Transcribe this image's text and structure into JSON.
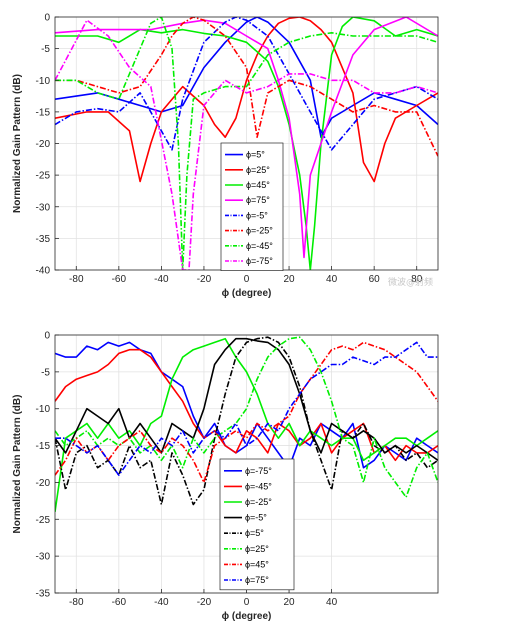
{
  "chart_data": [
    {
      "type": "line",
      "xlabel": "ϕ (degree)",
      "ylabel": "Normalized Gain Pattern (dB)",
      "xlim": [
        -90,
        90
      ],
      "ylim": [
        -40,
        0
      ],
      "xticks": [
        -80,
        -60,
        -40,
        -20,
        0,
        20,
        40,
        60,
        80
      ],
      "yticks": [
        0,
        -5,
        -10,
        -15,
        -20,
        -25,
        -30,
        -35,
        -40
      ],
      "grid": true,
      "legend_position": "center",
      "series": [
        {
          "name": "ϕ=5°",
          "color": "#0000ff",
          "dash": "solid",
          "x": [
            -90,
            -70,
            -60,
            -50,
            -40,
            -30,
            -20,
            -10,
            0,
            5,
            10,
            20,
            30,
            35,
            40,
            50,
            60,
            70,
            80,
            90
          ],
          "y": [
            -13,
            -12,
            -13,
            -14,
            -15,
            -14,
            -8,
            -4,
            -0.8,
            0,
            -0.8,
            -4,
            -10,
            -19,
            -16,
            -14,
            -12,
            -13,
            -14,
            -17
          ]
        },
        {
          "name": "ϕ=25°",
          "color": "#ff0000",
          "dash": "solid",
          "x": [
            -90,
            -75,
            -65,
            -55,
            -50,
            -45,
            -40,
            -30,
            -20,
            -15,
            -10,
            -5,
            0,
            5,
            10,
            15,
            20,
            25,
            30,
            35,
            40,
            50,
            55,
            60,
            65,
            70,
            80,
            90
          ],
          "y": [
            -16,
            -15,
            -15,
            -18,
            -26,
            -20,
            -15,
            -11,
            -14,
            -17,
            -19,
            -16,
            -10,
            -6,
            -3,
            -1,
            -0.2,
            0,
            -0.6,
            -2,
            -4,
            -12,
            -23,
            -26,
            -20,
            -16,
            -14,
            -12
          ]
        },
        {
          "name": "ϕ=45°",
          "color": "#00ee00",
          "dash": "solid",
          "x": [
            -90,
            -70,
            -60,
            -50,
            -40,
            -30,
            -20,
            -10,
            0,
            10,
            15,
            20,
            25,
            28,
            30,
            32,
            35,
            40,
            45,
            50,
            60,
            70,
            80,
            90
          ],
          "y": [
            -3,
            -3,
            -4,
            -2,
            -2.5,
            -2,
            -2.6,
            -3,
            -4,
            -7,
            -11,
            -17,
            -25,
            -33,
            -40,
            -33,
            -20,
            -6,
            -1.5,
            0,
            -0.6,
            -3,
            -2,
            -3
          ]
        },
        {
          "name": "ϕ=75°",
          "color": "#ff00ff",
          "dash": "solid",
          "x": [
            -90,
            -70,
            -60,
            -45,
            -30,
            -20,
            -10,
            0,
            10,
            15,
            20,
            25,
            27,
            30,
            40,
            50,
            60,
            75,
            90
          ],
          "y": [
            -2.5,
            -2,
            -2,
            -2,
            -1,
            -0.5,
            -1,
            -3,
            -5,
            -10,
            -16,
            -28,
            -38,
            -25,
            -15,
            -6,
            -2,
            0,
            -3
          ]
        },
        {
          "name": "ϕ=-5°",
          "color": "#0000ff",
          "dash": "dashdot",
          "x": [
            -90,
            -80,
            -70,
            -60,
            -50,
            -40,
            -35,
            -30,
            -20,
            -10,
            -5,
            0,
            10,
            20,
            30,
            40,
            50,
            60,
            70,
            80,
            90
          ],
          "y": [
            -17,
            -15,
            -14.5,
            -15,
            -12,
            -18,
            -21,
            -13,
            -4,
            -0.8,
            0,
            -0.5,
            -3,
            -9,
            -15,
            -21,
            -17,
            -13,
            -12,
            -11,
            -13
          ]
        },
        {
          "name": "ϕ=-25°",
          "color": "#ff0000",
          "dash": "dashdot",
          "x": [
            -90,
            -80,
            -70,
            -60,
            -50,
            -40,
            -35,
            -30,
            -25,
            -20,
            -10,
            0,
            5,
            10,
            20,
            30,
            40,
            50,
            60,
            70,
            80,
            90
          ],
          "y": [
            -10,
            -10,
            -11,
            -12,
            -11,
            -6,
            -3,
            -1,
            0,
            -0.5,
            -3,
            -8,
            -19,
            -12,
            -10,
            -11,
            -13,
            -15,
            -14,
            -15,
            -15,
            -22
          ]
        },
        {
          "name": "ϕ=-45°",
          "color": "#00ee00",
          "dash": "dashdot",
          "x": [
            -90,
            -80,
            -70,
            -60,
            -50,
            -45,
            -40,
            -35,
            -32,
            -30,
            -28,
            -25,
            -20,
            -10,
            0,
            10,
            20,
            30,
            40,
            50,
            60,
            70,
            80,
            90
          ],
          "y": [
            -10,
            -10,
            -12,
            -13,
            -5,
            -1,
            0,
            -5,
            -20,
            -40,
            -25,
            -13,
            -12,
            -11,
            -11,
            -6,
            -4,
            -3,
            -2.5,
            -3,
            -3,
            -3,
            -3,
            -4
          ]
        },
        {
          "name": "ϕ=-75°",
          "color": "#ff00ff",
          "dash": "dashdot",
          "x": [
            -90,
            -75,
            -65,
            -55,
            -45,
            -35,
            -30,
            -27,
            -25,
            -20,
            -10,
            0,
            10,
            20,
            30,
            40,
            50,
            60,
            70,
            80,
            90
          ],
          "y": [
            -10,
            -0.5,
            -3,
            -8,
            -11,
            -28,
            -40,
            -40,
            -28,
            -14,
            -10,
            -12,
            -11,
            -9,
            -9,
            -10,
            -10,
            -12,
            -12,
            -11,
            -12
          ]
        }
      ]
    },
    {
      "type": "line",
      "xlabel": "ϕ (degree)",
      "ylabel": "Normalized Gain Pattern (dB)",
      "xlim": [
        -90,
        90
      ],
      "ylim": [
        -35,
        0
      ],
      "xticks": [
        -80,
        -60,
        -40,
        -20,
        0,
        20,
        40
      ],
      "yticks": [
        0,
        -5,
        -10,
        -15,
        -20,
        -25,
        -30,
        -35
      ],
      "grid": true,
      "legend_position": "center",
      "series": [
        {
          "name": "ϕ=-75°",
          "color": "#0000ff",
          "dash": "solid",
          "x": [
            -90,
            -85,
            -80,
            -75,
            -70,
            -65,
            -60,
            -55,
            -50,
            -45,
            -40,
            -35,
            -30,
            -25,
            -20,
            -15,
            -10,
            -5,
            0,
            5,
            10,
            15,
            20,
            25,
            30,
            35,
            40,
            45,
            50,
            55,
            60,
            65,
            70,
            75,
            80,
            85,
            90
          ],
          "y": [
            -2.5,
            -3,
            -3,
            -1.5,
            -2,
            -1,
            -1.5,
            -1,
            -2,
            -2.5,
            -5,
            -6,
            -7,
            -11,
            -14,
            -12,
            -15,
            -16,
            -15,
            -12,
            -14,
            -16,
            -18,
            -14,
            -15,
            -12,
            -13,
            -14,
            -12,
            -18,
            -17,
            -15,
            -16,
            -17,
            -14,
            -15,
            -16
          ]
        },
        {
          "name": "ϕ=-45°",
          "color": "#ff0000",
          "dash": "solid",
          "x": [
            -90,
            -85,
            -80,
            -75,
            -70,
            -65,
            -60,
            -55,
            -50,
            -45,
            -40,
            -35,
            -30,
            -25,
            -20,
            -15,
            -10,
            -5,
            0,
            5,
            10,
            15,
            20,
            25,
            30,
            35,
            40,
            45,
            50,
            55,
            60,
            65,
            70,
            75,
            80,
            85,
            90
          ],
          "y": [
            -9,
            -7,
            -6,
            -5.5,
            -5,
            -4,
            -2.5,
            -2,
            -2,
            -3,
            -5,
            -7,
            -9,
            -12,
            -14,
            -13,
            -15,
            -16,
            -13,
            -14,
            -16,
            -12,
            -13,
            -15,
            -14,
            -12,
            -16,
            -14,
            -13,
            -12,
            -16,
            -15,
            -17,
            -15,
            -16,
            -16,
            -15
          ]
        },
        {
          "name": "ϕ=-25°",
          "color": "#00ee00",
          "dash": "solid",
          "x": [
            -90,
            -85,
            -80,
            -75,
            -70,
            -65,
            -60,
            -55,
            -50,
            -45,
            -40,
            -35,
            -30,
            -25,
            -20,
            -15,
            -10,
            -5,
            0,
            5,
            10,
            15,
            20,
            25,
            30,
            35,
            40,
            45,
            50,
            55,
            60,
            65,
            70,
            75,
            80,
            85,
            90
          ],
          "y": [
            -24,
            -14,
            -13,
            -12,
            -14,
            -12,
            -14,
            -13,
            -15,
            -12,
            -11,
            -6,
            -3,
            -2,
            -1.5,
            -1,
            -0.5,
            -3,
            -5,
            -8,
            -12,
            -14,
            -12,
            -15,
            -13,
            -14,
            -15,
            -14,
            -14,
            -17,
            -16,
            -15,
            -14,
            -14,
            -15,
            -14,
            -13
          ]
        },
        {
          "name": "ϕ=-5°",
          "color": "#000000",
          "dash": "solid",
          "x": [
            -90,
            -85,
            -80,
            -75,
            -70,
            -65,
            -60,
            -55,
            -50,
            -45,
            -40,
            -35,
            -30,
            -25,
            -20,
            -15,
            -10,
            -5,
            0,
            5,
            10,
            15,
            20,
            25,
            30,
            35,
            40,
            45,
            50,
            55,
            60,
            65,
            70,
            75,
            80,
            85,
            90
          ],
          "y": [
            -14,
            -16,
            -13,
            -10,
            -11,
            -12,
            -10,
            -14,
            -12,
            -14,
            -16,
            -12,
            -13,
            -14,
            -10,
            -4,
            -2,
            -0.5,
            -0.5,
            -0.8,
            -1,
            -2,
            -4,
            -8,
            -13,
            -16,
            -12,
            -13,
            -14,
            -13,
            -14,
            -16,
            -15,
            -16,
            -15,
            -16,
            -17
          ]
        },
        {
          "name": "ϕ=5°",
          "color": "#000000",
          "dash": "dashdot",
          "x": [
            -90,
            -85,
            -80,
            -75,
            -70,
            -65,
            -60,
            -55,
            -50,
            -45,
            -40,
            -35,
            -30,
            -25,
            -20,
            -15,
            -10,
            -5,
            0,
            5,
            10,
            15,
            20,
            25,
            30,
            35,
            40,
            45,
            50,
            55,
            60,
            65,
            70,
            75,
            80,
            85,
            90
          ],
          "y": [
            -14,
            -21,
            -16,
            -15,
            -18,
            -17,
            -19,
            -15,
            -18,
            -17,
            -23,
            -16,
            -19,
            -23,
            -21,
            -14,
            -8,
            -3,
            -1,
            -0.5,
            -0.3,
            -1,
            -3,
            -7,
            -13,
            -17,
            -21,
            -13,
            -14,
            -12,
            -15,
            -16,
            -15,
            -17,
            -16,
            -18,
            -17
          ]
        },
        {
          "name": "ϕ=25°",
          "color": "#00ee00",
          "dash": "dashdot",
          "x": [
            -90,
            -85,
            -80,
            -75,
            -70,
            -65,
            -60,
            -55,
            -50,
            -45,
            -40,
            -35,
            -30,
            -25,
            -20,
            -15,
            -10,
            -5,
            0,
            5,
            10,
            15,
            20,
            25,
            30,
            35,
            40,
            45,
            50,
            55,
            60,
            65,
            70,
            75,
            80,
            85,
            90
          ],
          "y": [
            -13,
            -15,
            -14,
            -13,
            -15,
            -14,
            -15,
            -14,
            -16,
            -15,
            -17,
            -15,
            -18,
            -14,
            -16,
            -14,
            -13,
            -12,
            -10,
            -6,
            -3,
            -1.5,
            -0.5,
            -0.3,
            -2,
            -5,
            -9,
            -14,
            -15,
            -20,
            -14,
            -18,
            -20,
            -22,
            -18,
            -16,
            -20
          ]
        },
        {
          "name": "ϕ=45°",
          "color": "#ff0000",
          "dash": "dashdot",
          "x": [
            -90,
            -85,
            -80,
            -75,
            -70,
            -65,
            -60,
            -55,
            -50,
            -45,
            -40,
            -35,
            -30,
            -25,
            -20,
            -15,
            -10,
            -5,
            0,
            5,
            10,
            15,
            20,
            25,
            30,
            35,
            40,
            45,
            50,
            55,
            60,
            65,
            70,
            75,
            80,
            85,
            90
          ],
          "y": [
            -19,
            -17,
            -14,
            -16,
            -15,
            -17,
            -15,
            -14,
            -13,
            -15,
            -16,
            -14,
            -15,
            -17,
            -20,
            -15,
            -14,
            -13,
            -14,
            -12,
            -13,
            -12,
            -11,
            -8,
            -6,
            -4,
            -2,
            -1.5,
            -2,
            -1,
            -1.5,
            -2,
            -3,
            -4,
            -5,
            -7,
            -9
          ]
        },
        {
          "name": "ϕ=75°",
          "color": "#0000ff",
          "dash": "dashdot",
          "x": [
            -90,
            -85,
            -80,
            -75,
            -70,
            -65,
            -60,
            -55,
            -50,
            -45,
            -40,
            -35,
            -30,
            -25,
            -20,
            -15,
            -10,
            -5,
            0,
            5,
            10,
            15,
            20,
            25,
            30,
            35,
            40,
            45,
            50,
            55,
            60,
            65,
            70,
            75,
            80,
            85,
            90
          ],
          "y": [
            -14,
            -14,
            -15,
            -16,
            -15,
            -17,
            -19,
            -17,
            -15,
            -16,
            -14,
            -15,
            -13,
            -16,
            -14,
            -13,
            -14,
            -12,
            -15,
            -14,
            -12,
            -13,
            -10,
            -8,
            -6,
            -5,
            -4,
            -4,
            -3,
            -3.5,
            -4,
            -3,
            -3,
            -2,
            -1,
            -3,
            -3
          ]
        }
      ]
    }
  ],
  "watermarks": [
    "微波@射频"
  ]
}
